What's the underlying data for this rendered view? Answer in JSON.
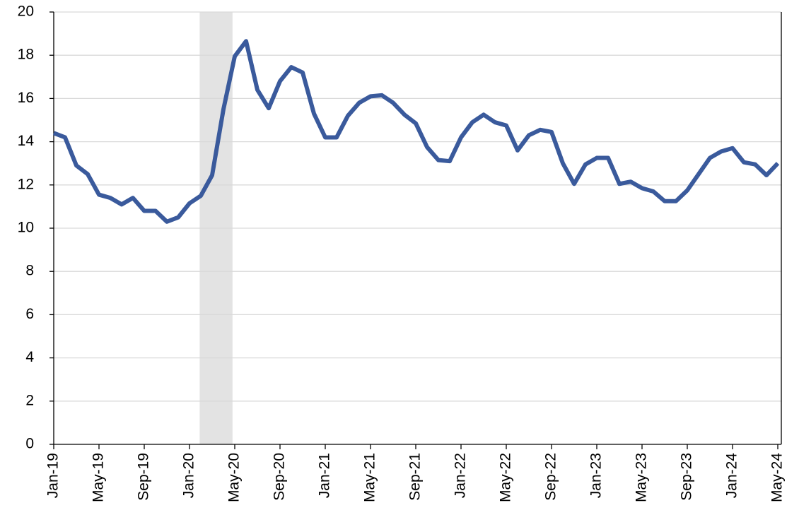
{
  "chart_data": {
    "type": "line",
    "categories": [
      "Jan-19",
      null,
      null,
      null,
      "May-19",
      null,
      null,
      null,
      "Sep-19",
      null,
      null,
      null,
      "Jan-20",
      null,
      null,
      null,
      "May-20",
      null,
      null,
      null,
      "Sep-20",
      null,
      null,
      null,
      "Jan-21",
      null,
      null,
      null,
      "May-21",
      null,
      null,
      null,
      "Sep-21",
      null,
      null,
      null,
      "Jan-22",
      null,
      null,
      null,
      "May-22",
      null,
      null,
      null,
      "Sep-22",
      null,
      null,
      null,
      "Jan-23",
      null,
      null,
      null,
      "May-23",
      null,
      null,
      null,
      "Sep-23",
      null,
      null,
      null,
      "Jan-24",
      null,
      null,
      null,
      "May-24"
    ],
    "series": [
      {
        "color": "#3a5a9c",
        "values": [
          14.4,
          14.2,
          12.9,
          12.5,
          11.55,
          11.4,
          11.1,
          11.4,
          10.8,
          10.8,
          10.3,
          10.5,
          11.15,
          11.5,
          12.45,
          15.5,
          17.95,
          18.65,
          16.4,
          15.55,
          16.8,
          17.45,
          17.2,
          15.3,
          14.2,
          14.2,
          15.2,
          15.8,
          16.1,
          16.15,
          15.8,
          15.25,
          14.85,
          13.75,
          13.15,
          13.1,
          14.2,
          14.9,
          15.25,
          14.9,
          14.75,
          13.6,
          14.3,
          14.55,
          14.45,
          13.0,
          12.05,
          12.95,
          13.25,
          13.25,
          12.05,
          12.15,
          11.85,
          11.7,
          11.25,
          11.25,
          11.75,
          12.5,
          13.25,
          13.55,
          13.7,
          13.05,
          12.95,
          12.45,
          13.0
        ]
      }
    ],
    "shaded_range": [
      12.9,
      15.8
    ],
    "shade_color": "#e3e3e3",
    "ylim": [
      0,
      20
    ],
    "yticks": [
      0,
      2,
      4,
      6,
      8,
      10,
      12,
      14,
      16,
      18,
      20
    ],
    "grid": true
  }
}
